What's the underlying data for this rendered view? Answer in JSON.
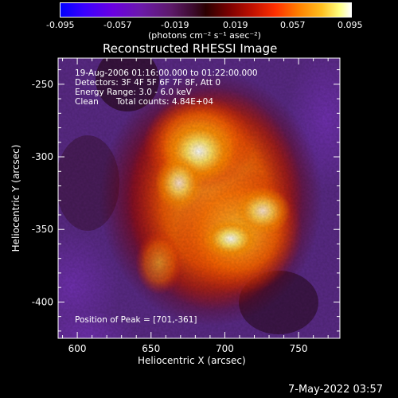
{
  "colorbar": {
    "tick_labels": [
      "-0.095",
      "-0.057",
      "-0.019",
      "0.019",
      "0.057",
      "0.095"
    ],
    "min": -0.095,
    "max": 0.095,
    "units_label": "(photons cm⁻² s⁻¹ asec⁻²)",
    "colormap": "rhessi-hot"
  },
  "chart_data": {
    "type": "heatmap",
    "title": "Reconstructed RHESSI Image",
    "xlabel": "Heliocentric X (arcsec)",
    "ylabel": "Heliocentric Y (arcsec)",
    "xlim": [
      587,
      778
    ],
    "ylim": [
      -425,
      -232
    ],
    "x_ticks": [
      600,
      650,
      700,
      750
    ],
    "y_ticks": [
      -250,
      -300,
      -350,
      -400
    ],
    "peak_position": [
      701,
      -361
    ],
    "annotations": {
      "time_range": "19-Aug-2006 01:16:00.000 to 01:22:00.000",
      "detectors": "Detectors: 3F 4F 5F 6F 7F 8F, Att 0",
      "energy_range": "Energy Range: 3.0 - 6.0 keV",
      "clean_label": "Clean",
      "total_counts": "Total counts: 4.84E+04",
      "peak_label": "Position of Peak = [701,-361]"
    }
  },
  "footer": {
    "date": "7-May-2022 03:57"
  }
}
